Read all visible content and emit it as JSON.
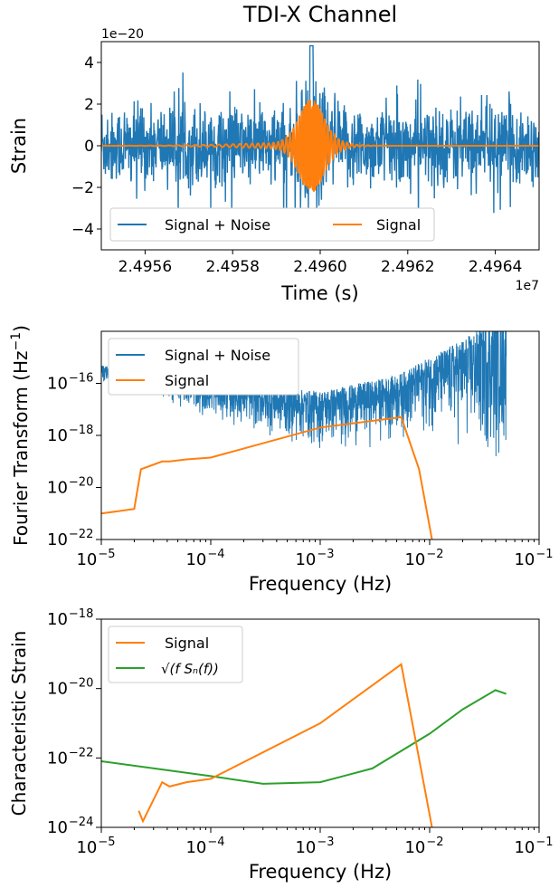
{
  "figure_title": "TDI-X Channel",
  "colors": {
    "signal_noise": "#1f77b4",
    "signal": "#ff7f0e",
    "noise_curve": "#2ca02c"
  },
  "chart_data": [
    {
      "type": "line",
      "xlabel": "Time (s)",
      "ylabel": "Strain",
      "x_offset_label": "1e7",
      "y_offset_label": "1e−20",
      "xlim": [
        2.4955,
        2.4965
      ],
      "ylim": [
        -5,
        5
      ],
      "x_scale": 10000000.0,
      "y_scale": 1e-20,
      "xticks": [
        "2.4956",
        "2.4958",
        "2.4960",
        "2.4962",
        "2.4964"
      ],
      "yticks": [
        "−4",
        "−2",
        "0",
        "2",
        "4"
      ],
      "legend": [
        "Signal + Noise",
        "Signal"
      ],
      "legend_loc": "lower-left",
      "series": [
        {
          "name": "Signal + Noise",
          "description": "noisy strain time series, values mostly within ±2e-20, peak ~4.8e-20 near t=2.49598e7"
        },
        {
          "name": "Signal",
          "chirp_peak_time": 2.49598,
          "chirp_peak_amplitude": 2.1
        }
      ]
    },
    {
      "type": "line",
      "xscale": "log",
      "yscale": "log",
      "xlabel": "Frequency (Hz)",
      "ylabel": "Fourier Transform (Hz",
      "ylabel_sup": "−1",
      "ylabel_end": ")",
      "xlim": [
        1e-05,
        0.1
      ],
      "ylim": [
        1e-22,
        1e-14
      ],
      "xticks": [
        -5,
        -4,
        -3,
        -2,
        -1
      ],
      "yticks": [
        -22,
        -20,
        -18,
        -16
      ],
      "legend": [
        "Signal + Noise",
        "Signal"
      ],
      "legend_loc": "upper-left",
      "series": [
        {
          "name": "Signal + Noise",
          "envelope_upper": [
            [
              1e-05,
              5e-16
            ],
            [
              0.0001,
              1e-16
            ],
            [
              0.001,
              5e-17
            ],
            [
              0.005,
              2e-16
            ],
            [
              0.02,
              5e-15
            ],
            [
              0.04,
              3e-14
            ]
          ],
          "envelope_lower": [
            [
              1e-05,
              1e-16
            ],
            [
              0.0001,
              3e-18
            ],
            [
              0.001,
              1e-19
            ],
            [
              0.01,
              5e-19
            ],
            [
              0.04,
              1e-20
            ]
          ]
        },
        {
          "name": "Signal",
          "points": [
            [
              1e-05,
              1e-21
            ],
            [
              2e-05,
              1.5e-21
            ],
            [
              2.3e-05,
              5e-20
            ],
            [
              3.6e-05,
              1e-19
            ],
            [
              4.2e-05,
              1e-19
            ],
            [
              6e-05,
              1.2e-19
            ],
            [
              0.0001,
              1.4e-19
            ],
            [
              0.001,
              2e-18
            ],
            [
              0.0055,
              5e-18
            ],
            [
              0.008,
              5e-20
            ],
            [
              0.0105,
              1e-22
            ]
          ]
        }
      ]
    },
    {
      "type": "line",
      "xscale": "log",
      "yscale": "log",
      "xlabel": "Frequency (Hz)",
      "ylabel": "Characteristic Strain",
      "xlim": [
        1e-05,
        0.1
      ],
      "ylim": [
        1e-24,
        1e-18
      ],
      "xticks": [
        -5,
        -4,
        -3,
        -2,
        -1
      ],
      "yticks": [
        -24,
        -22,
        -20,
        -18
      ],
      "legend": [
        "Signal",
        "√(f Sₙ(f))"
      ],
      "legend_loc": "upper-left",
      "series": [
        {
          "name": "Signal",
          "points": [
            [
              2.2e-05,
              3e-24
            ],
            [
              2.4e-05,
              1.5e-24
            ],
            [
              3.6e-05,
              2e-23
            ],
            [
              4.2e-05,
              1.5e-23
            ],
            [
              6e-05,
              2e-23
            ],
            [
              0.0001,
              2.5e-23
            ],
            [
              0.001,
              1e-21
            ],
            [
              0.0055,
              5e-20
            ],
            [
              0.0105,
              1e-24
            ]
          ]
        },
        {
          "name": "√(f Sₙ(f))",
          "points": [
            [
              1e-05,
              8e-23
            ],
            [
              0.0001,
              3e-23
            ],
            [
              0.0003,
              1.8e-23
            ],
            [
              0.001,
              2e-23
            ],
            [
              0.003,
              5e-23
            ],
            [
              0.01,
              5e-22
            ],
            [
              0.02,
              2.5e-21
            ],
            [
              0.04,
              9e-21
            ],
            [
              0.05,
              7e-21
            ]
          ]
        }
      ]
    }
  ]
}
